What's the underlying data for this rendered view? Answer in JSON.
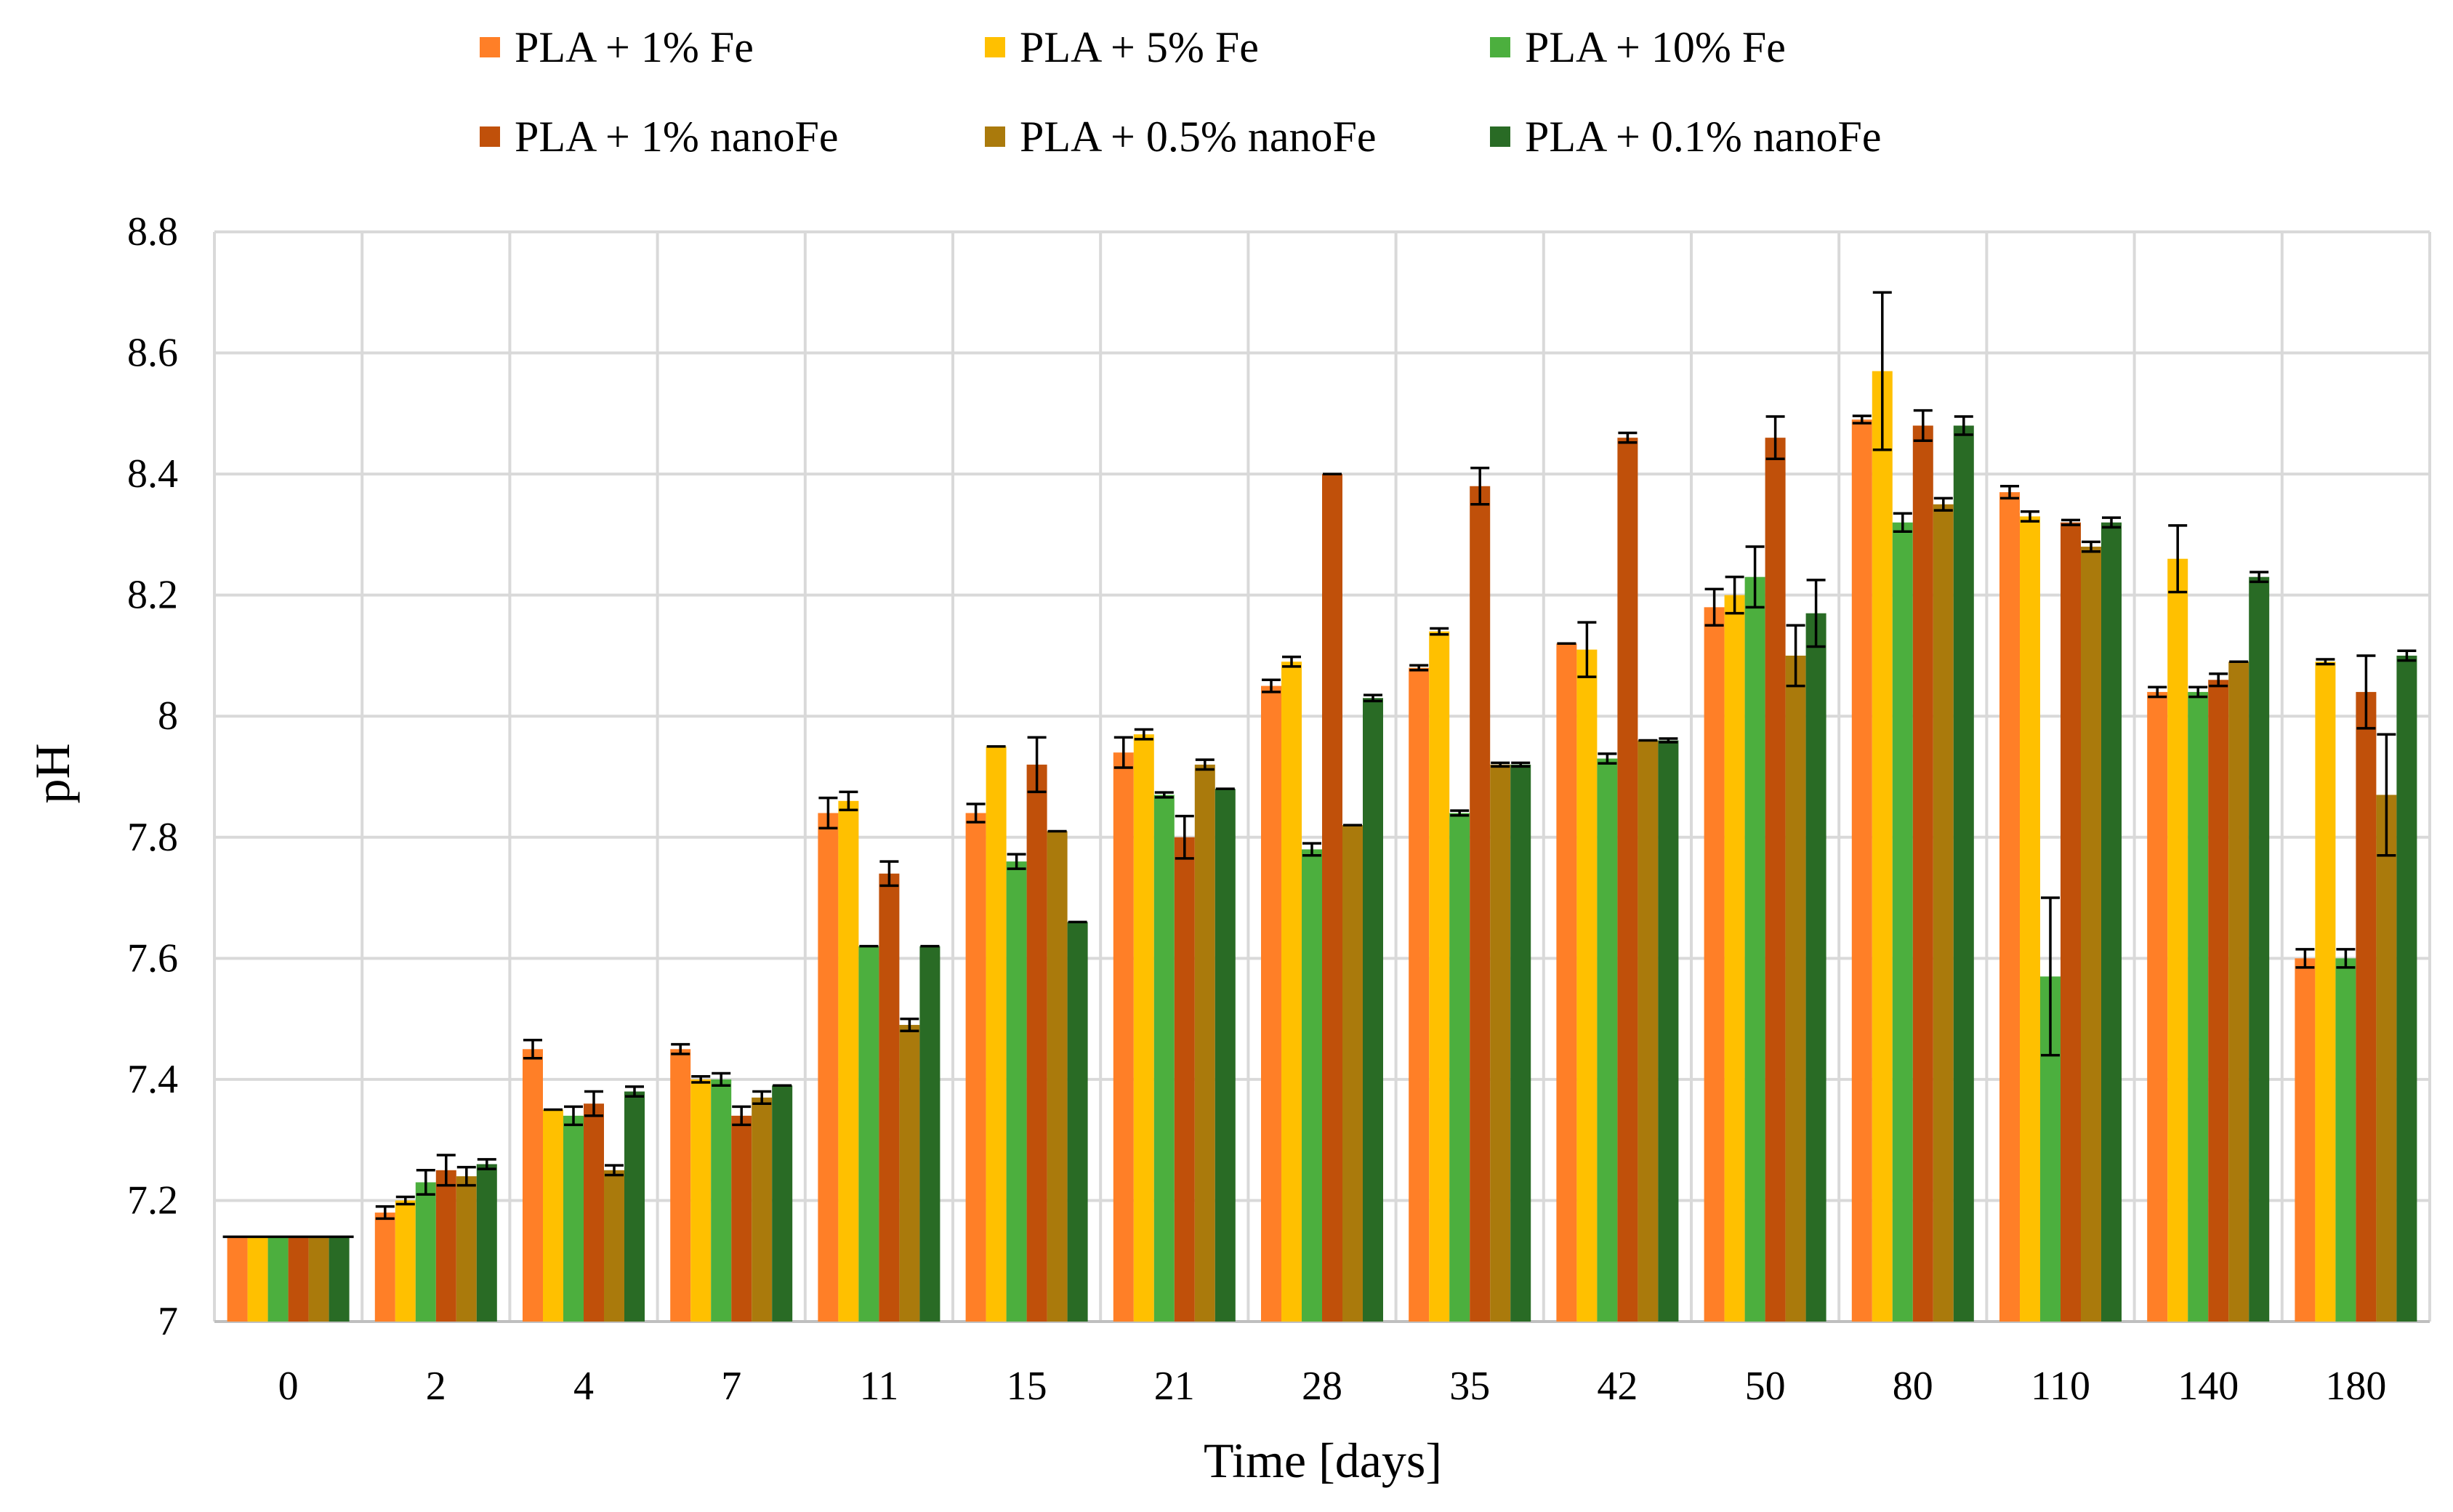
{
  "chart_data": {
    "type": "bar",
    "title": "",
    "xlabel": "Time [days]",
    "ylabel": "pH",
    "ylim": [
      7,
      8.8
    ],
    "yticks": [
      "7",
      "7.2",
      "7.4",
      "7.6",
      "7.8",
      "8",
      "8.2",
      "8.4",
      "8.6",
      "8.8"
    ],
    "ytick_values": [
      7,
      7.2,
      7.4,
      7.6,
      7.8,
      8.0,
      8.2,
      8.4,
      8.6,
      8.8
    ],
    "grid": true,
    "legend_position": "top",
    "categories": [
      "0",
      "2",
      "4",
      "7",
      "11",
      "15",
      "21",
      "28",
      "35",
      "42",
      "50",
      "80",
      "110",
      "140",
      "180"
    ],
    "series": [
      {
        "name": "PLA + 1% Fe",
        "color": "#ff7f27",
        "values": [
          7.14,
          7.18,
          7.45,
          7.45,
          7.84,
          7.84,
          7.94,
          8.05,
          8.08,
          8.12,
          8.18,
          8.49,
          8.37,
          8.04,
          7.6
        ],
        "errors": [
          0,
          0.01,
          0.015,
          0.008,
          0.025,
          0.015,
          0.025,
          0.01,
          0.004,
          0,
          0.03,
          0.006,
          0.01,
          0.008,
          0.015
        ]
      },
      {
        "name": "PLA + 5% Fe",
        "color": "#ffc000",
        "values": [
          7.14,
          7.2,
          7.35,
          7.4,
          7.86,
          7.95,
          7.97,
          8.09,
          8.14,
          8.11,
          8.2,
          8.57,
          8.33,
          8.26,
          8.09
        ],
        "errors": [
          0,
          0.006,
          0,
          0.005,
          0.015,
          0,
          0.008,
          0.008,
          0.005,
          0.045,
          0.03,
          0.13,
          0.008,
          0.055,
          0.004
        ]
      },
      {
        "name": "PLA + 10% Fe",
        "color": "#4caf3e",
        "values": [
          7.14,
          7.23,
          7.34,
          7.4,
          7.62,
          7.76,
          7.87,
          7.78,
          7.84,
          7.93,
          8.23,
          8.32,
          7.57,
          8.04,
          7.6
        ],
        "errors": [
          0,
          0.02,
          0.015,
          0.01,
          0,
          0.012,
          0.004,
          0.01,
          0.004,
          0.008,
          0.05,
          0.015,
          0.13,
          0.008,
          0.015
        ]
      },
      {
        "name": "PLA + 1% nanoFe",
        "color": "#c0500a",
        "values": [
          7.14,
          7.25,
          7.36,
          7.34,
          7.74,
          7.92,
          7.8,
          8.4,
          8.38,
          8.46,
          8.46,
          8.48,
          8.32,
          8.06,
          8.04
        ],
        "errors": [
          0,
          0.025,
          0.02,
          0.015,
          0.02,
          0.045,
          0.035,
          0,
          0.03,
          0.008,
          0.035,
          0.025,
          0.004,
          0.01,
          0.06
        ]
      },
      {
        "name": "PLA + 0.5% nanoFe",
        "color": "#aa7a0c",
        "values": [
          7.14,
          7.24,
          7.25,
          7.37,
          7.49,
          7.81,
          7.92,
          7.82,
          7.92,
          7.96,
          8.1,
          8.35,
          8.28,
          8.09,
          7.87
        ],
        "errors": [
          0,
          0.015,
          0.008,
          0.01,
          0.01,
          0,
          0.008,
          0,
          0.003,
          0,
          0.05,
          0.01,
          0.008,
          0,
          0.1
        ]
      },
      {
        "name": "PLA + 0.1% nanoFe",
        "color": "#296b25",
        "values": [
          7.14,
          7.26,
          7.38,
          7.39,
          7.62,
          7.66,
          7.88,
          8.03,
          7.92,
          7.96,
          8.17,
          8.48,
          8.32,
          8.23,
          8.1
        ],
        "errors": [
          0,
          0.008,
          0.008,
          0,
          0,
          0,
          0,
          0.005,
          0.003,
          0.003,
          0.055,
          0.015,
          0.008,
          0.008,
          0.008
        ]
      }
    ]
  }
}
